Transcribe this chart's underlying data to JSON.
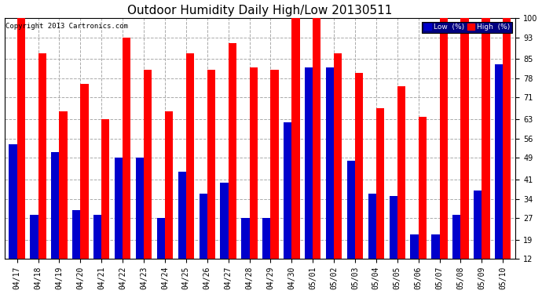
{
  "title": "Outdoor Humidity Daily High/Low 20130511",
  "copyright": "Copyright 2013 Cartronics.com",
  "dates": [
    "04/17",
    "04/18",
    "04/19",
    "04/20",
    "04/21",
    "04/22",
    "04/23",
    "04/24",
    "04/25",
    "04/26",
    "04/27",
    "04/28",
    "04/29",
    "04/30",
    "05/01",
    "05/02",
    "05/03",
    "05/04",
    "05/05",
    "05/06",
    "05/07",
    "05/08",
    "05/09",
    "05/10"
  ],
  "high": [
    100,
    87,
    66,
    76,
    63,
    93,
    81,
    66,
    87,
    81,
    91,
    82,
    81,
    100,
    100,
    87,
    80,
    67,
    75,
    64,
    100,
    100,
    100,
    100
  ],
  "low": [
    54,
    28,
    51,
    30,
    28,
    49,
    49,
    27,
    44,
    36,
    40,
    27,
    27,
    62,
    82,
    82,
    48,
    36,
    35,
    21,
    21,
    28,
    37,
    83
  ],
  "high_color": "#ff0000",
  "low_color": "#0000cc",
  "bg_color": "#ffffff",
  "ylim_min": 12,
  "ylim_max": 100,
  "yticks": [
    12,
    19,
    27,
    34,
    41,
    49,
    56,
    63,
    71,
    78,
    85,
    93,
    100
  ],
  "grid_color": "#aaaaaa",
  "bar_width": 0.38,
  "legend_low_label": "Low  (%)",
  "legend_high_label": "High  (%)",
  "title_fontsize": 11,
  "tick_fontsize": 7,
  "copyright_fontsize": 6.5,
  "fig_width": 6.9,
  "fig_height": 3.75
}
